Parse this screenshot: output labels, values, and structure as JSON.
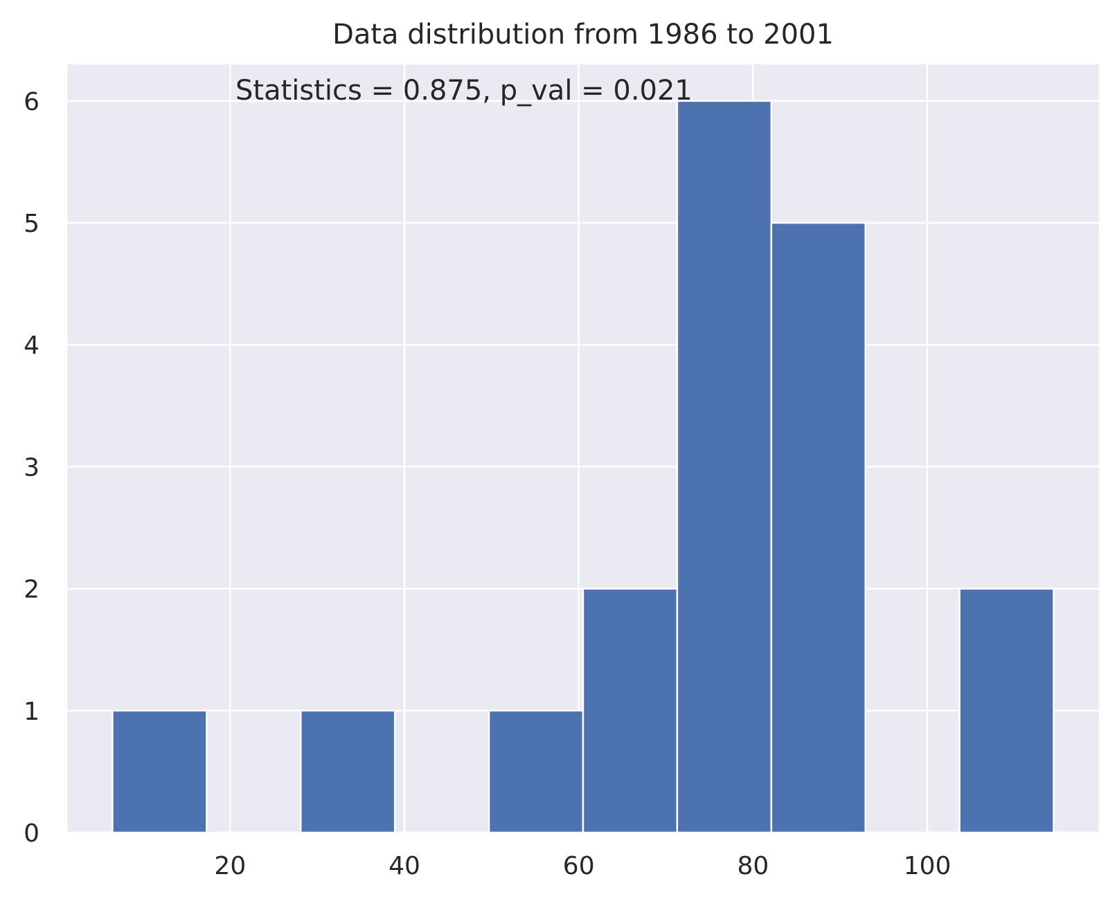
{
  "chart_data": {
    "type": "bar",
    "title": "Data distribution from 1986 to 2001",
    "annotation": "Statistics = 0.875, p_val = 0.021",
    "xlabel": "",
    "ylabel": "",
    "xlim": [
      1.3,
      119.7
    ],
    "ylim": [
      0,
      6.3
    ],
    "x_ticks": [
      20,
      40,
      60,
      80,
      100
    ],
    "y_ticks": [
      0,
      1,
      2,
      3,
      4,
      5,
      6
    ],
    "grid": true,
    "bins": [
      {
        "start": 6.5,
        "end": 17.3,
        "count": 1
      },
      {
        "start": 17.3,
        "end": 28.1,
        "count": 0
      },
      {
        "start": 28.1,
        "end": 38.9,
        "count": 1
      },
      {
        "start": 38.9,
        "end": 49.7,
        "count": 0
      },
      {
        "start": 49.7,
        "end": 60.5,
        "count": 1
      },
      {
        "start": 60.5,
        "end": 71.3,
        "count": 2
      },
      {
        "start": 71.3,
        "end": 82.1,
        "count": 6
      },
      {
        "start": 82.1,
        "end": 92.9,
        "count": 5
      },
      {
        "start": 92.9,
        "end": 103.7,
        "count": 0
      },
      {
        "start": 103.7,
        "end": 114.5,
        "count": 2
      }
    ],
    "colors": {
      "bar": "#4c72b0",
      "plot_background": "#eaeaf2",
      "grid": "#ffffff",
      "text": "#262626"
    }
  }
}
